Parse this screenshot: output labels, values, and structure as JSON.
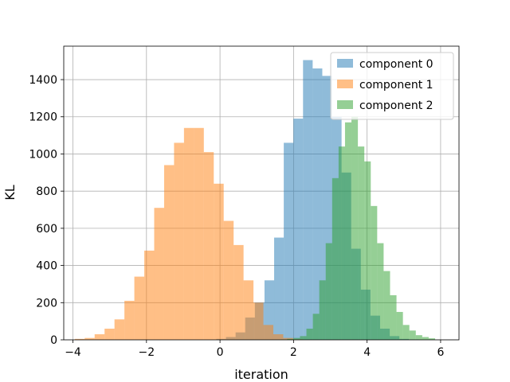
{
  "chart_data": {
    "type": "histogram",
    "xlabel": "iteration",
    "ylabel": "KL",
    "xlim": [
      -4.25,
      6.5
    ],
    "ylim": [
      0,
      1580
    ],
    "x_ticks": [
      -4,
      -2,
      0,
      2,
      4,
      6
    ],
    "y_ticks": [
      0,
      200,
      400,
      600,
      800,
      1000,
      1200,
      1400
    ],
    "x_tick_labels": [
      "−4",
      "−2",
      "0",
      "2",
      "4",
      "6"
    ],
    "y_tick_labels": [
      "0",
      "200",
      "400",
      "600",
      "800",
      "1000",
      "1200",
      "1400"
    ],
    "grid": true,
    "legend_position": "upper right",
    "alpha": 0.5,
    "series": [
      {
        "name": "component 0",
        "color": "#1f77b4",
        "bin_start": -0.1,
        "bin_width": 0.262,
        "counts": [
          5,
          15,
          40,
          120,
          200,
          320,
          550,
          1060,
          1190,
          1505,
          1460,
          1420,
          1200,
          900,
          490,
          270,
          130,
          60,
          20,
          5,
          2
        ]
      },
      {
        "name": "component 1",
        "color": "#ff7f0e",
        "bin_start": -3.95,
        "bin_width": 0.27,
        "counts": [
          5,
          10,
          30,
          60,
          110,
          210,
          340,
          480,
          710,
          940,
          1060,
          1140,
          1140,
          1010,
          840,
          640,
          510,
          320,
          200,
          80,
          30,
          10,
          3
        ]
      },
      {
        "name": "component 2",
        "color": "#2ca02c",
        "bin_start": 1.65,
        "bin_width": 0.175,
        "counts": [
          2,
          5,
          10,
          20,
          60,
          140,
          320,
          520,
          870,
          1040,
          1170,
          1200,
          1040,
          960,
          720,
          520,
          370,
          240,
          150,
          80,
          50,
          25,
          15,
          8
        ]
      }
    ]
  }
}
